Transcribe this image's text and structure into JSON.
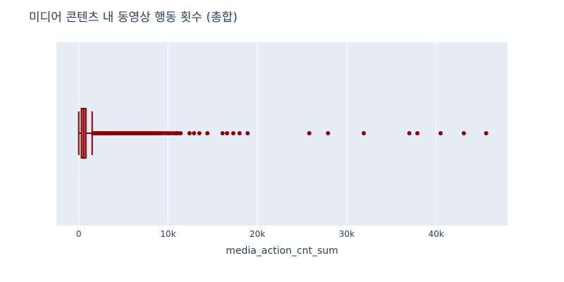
{
  "chart_data": {
    "type": "box",
    "title": "미디어 콘텐츠 내 동영상 행동 횟수 (총합)",
    "xlabel": "media_action_cnt_sum",
    "ylabel": "",
    "orientation": "horizontal",
    "xlim": [
      -2500,
      48000
    ],
    "xticks": [
      0,
      10000,
      20000,
      30000,
      40000
    ],
    "xtick_labels": [
      "0",
      "10k",
      "20k",
      "30k",
      "40k"
    ],
    "grid": true,
    "legend": "none",
    "colors": {
      "box": "#8b0000",
      "plot_bg": "#e5ecf6",
      "grid": "#ffffff",
      "text": "#2a3f5f"
    },
    "box": {
      "min": 0,
      "q1": 300,
      "median": 550,
      "q3": 800,
      "upper_fence": 1500
    },
    "outliers": [
      1600,
      1750,
      1900,
      2050,
      2200,
      2350,
      2500,
      2650,
      2800,
      2950,
      3100,
      3250,
      3400,
      3550,
      3700,
      3850,
      4000,
      4150,
      4300,
      4450,
      4600,
      4750,
      4900,
      5050,
      5200,
      5350,
      5500,
      5650,
      5800,
      5950,
      6100,
      6250,
      6400,
      6550,
      6700,
      6850,
      7000,
      7150,
      7300,
      7450,
      7600,
      7750,
      7900,
      8050,
      8200,
      8350,
      8500,
      8700,
      8900,
      9100,
      9300,
      9600,
      9900,
      10100,
      10400,
      10700,
      10900,
      11100,
      11400,
      12400,
      12900,
      13500,
      14400,
      16100,
      16600,
      17300,
      18000,
      18900,
      25800,
      27900,
      31900,
      37000,
      37900,
      40500,
      43100,
      45600
    ]
  }
}
